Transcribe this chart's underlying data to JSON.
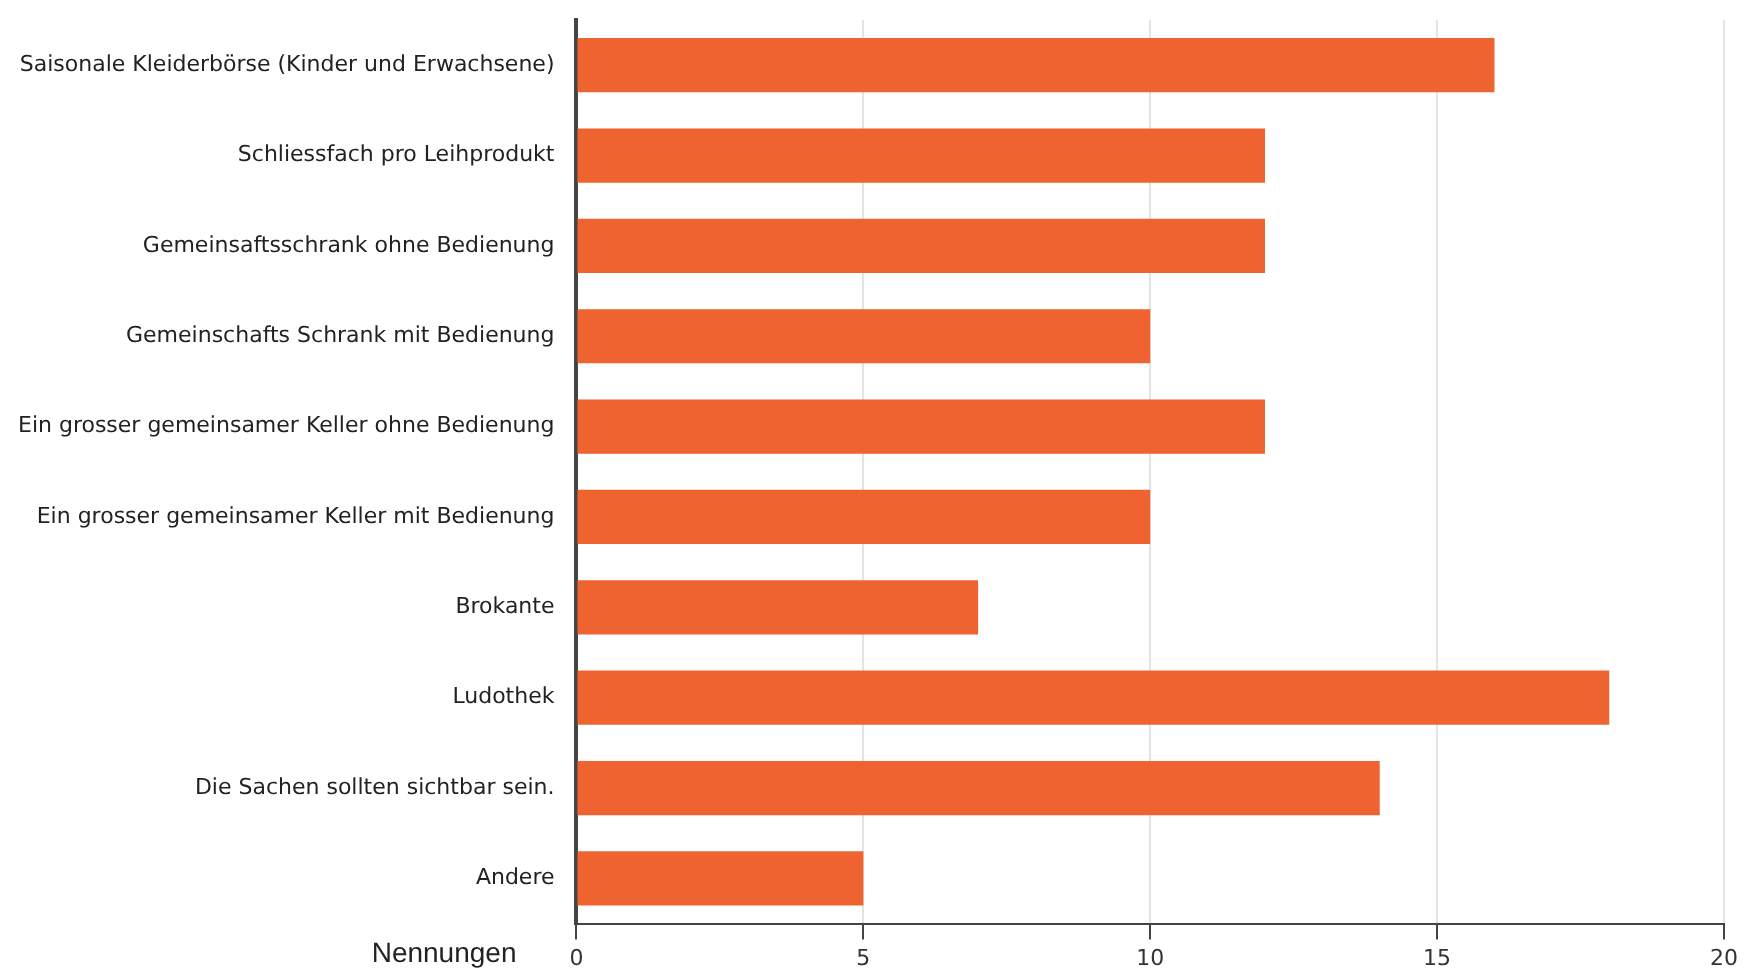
{
  "chart_data": {
    "type": "bar",
    "orientation": "horizontal",
    "xlabel": "Nennungen",
    "categories": [
      "Saisonale Kleiderbörse (Kinder und Erwachsene)",
      "Schliessfach pro Leihprodukt",
      "Gemeinsaftsschrank ohne Bedienung",
      "Gemeinschafts Schrank mit Bedienung",
      "Ein grosser gemeinsamer Keller ohne Bedienung",
      "Ein grosser gemeinsamer Keller mit Bedienung",
      "Brokante",
      "Ludothek",
      "Die Sachen sollten sichtbar sein.",
      "Andere"
    ],
    "values": [
      16,
      12,
      12,
      10,
      12,
      10,
      7,
      18,
      14,
      5
    ],
    "color": "#ef6331",
    "xlim": [
      0,
      20
    ],
    "xticks": [
      0,
      5,
      10,
      15,
      20
    ],
    "grid": "x",
    "legend": false
  }
}
